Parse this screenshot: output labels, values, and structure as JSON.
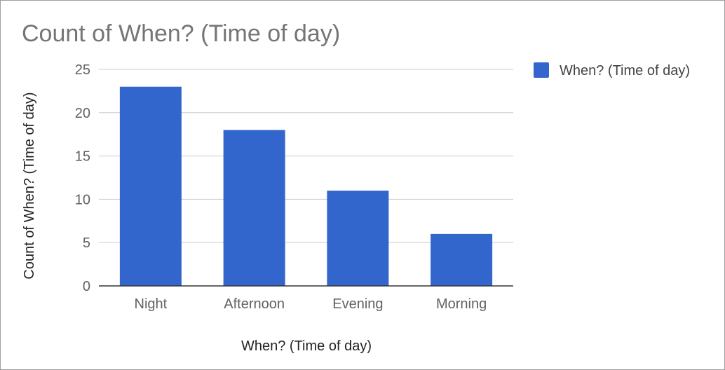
{
  "chart_data": {
    "type": "bar",
    "title": "Count of When? (Time of day)",
    "xlabel": "When? (Time of day)",
    "ylabel": "Count of When? (Time of day)",
    "categories": [
      "Night",
      "Afternoon",
      "Evening",
      "Morning"
    ],
    "series": [
      {
        "name": "When? (Time of day)",
        "values": [
          23,
          18,
          11,
          6
        ],
        "color": "#3366cc"
      }
    ],
    "ylim": [
      0,
      25
    ],
    "yticks": [
      0,
      5,
      10,
      15,
      20,
      25
    ],
    "grid": true,
    "legend": "right"
  }
}
